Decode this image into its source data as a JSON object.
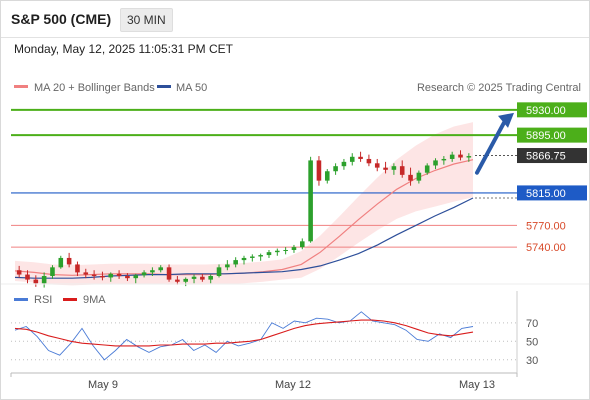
{
  "header": {
    "title": "S&P 500 (CME)",
    "interval": "30 MIN",
    "datetime": "Monday, May 12, 2025 11:05:31 PM CET"
  },
  "legend": {
    "ma20_label": "MA 20 + Bollinger Bands",
    "ma50_label": "MA 50",
    "copyright": "Research © 2025 Trading Central"
  },
  "rsi_legend": {
    "rsi_label": "RSI",
    "ma_label": "9MA"
  },
  "colors": {
    "up_candle": "#2ca02c",
    "down_candle": "#c62828",
    "band_fill": "#fde0e0",
    "ma20": "#f08080",
    "ma50": "#2d4f9a",
    "resistance": "#4caf1a",
    "support": "#1e5bc6",
    "pivot_red": "#f08080",
    "arrow": "#2a5aa8",
    "rsi": "#4a7bd6",
    "rsi_ma": "#d91c1c"
  },
  "chart_data": [
    {
      "type": "candlestick",
      "x_labels": [
        "May 9",
        "May 12",
        "May 13"
      ],
      "ylim": [
        5700,
        5945
      ],
      "series": [
        {
          "name": "MA 20 + Bollinger Bands",
          "values": [
            5707,
            5705,
            5702,
            5701,
            5702,
            5703,
            5703,
            5703,
            5702,
            5702,
            5702,
            5703,
            5704,
            5706,
            5709,
            5716,
            5733,
            5755,
            5778,
            5800,
            5820,
            5835,
            5846,
            5855,
            5861
          ]
        },
        {
          "name": "MA 50",
          "values": [
            5698,
            5697,
            5697,
            5697,
            5698,
            5700,
            5701,
            5702,
            5702,
            5703,
            5703,
            5703,
            5704,
            5705,
            5706,
            5709,
            5714,
            5722,
            5731,
            5743,
            5757,
            5770,
            5783,
            5795,
            5808
          ]
        }
      ],
      "candles": [
        [
          5708,
          5714,
          5698,
          5702
        ],
        [
          5702,
          5708,
          5690,
          5695
        ],
        [
          5695,
          5701,
          5685,
          5690
        ],
        [
          5690,
          5705,
          5684,
          5700
        ],
        [
          5700,
          5715,
          5696,
          5712
        ],
        [
          5712,
          5728,
          5710,
          5725
        ],
        [
          5725,
          5732,
          5712,
          5716
        ],
        [
          5716,
          5720,
          5700,
          5705
        ],
        [
          5705,
          5710,
          5697,
          5702
        ],
        [
          5702,
          5708,
          5695,
          5700
        ],
        [
          5700,
          5706,
          5694,
          5698
        ],
        [
          5698,
          5705,
          5692,
          5703
        ],
        [
          5703,
          5708,
          5696,
          5700
        ],
        [
          5700,
          5704,
          5693,
          5697
        ],
        [
          5697,
          5703,
          5690,
          5701
        ],
        [
          5701,
          5708,
          5698,
          5705
        ],
        [
          5705,
          5712,
          5700,
          5708
        ],
        [
          5708,
          5715,
          5705,
          5712
        ],
        [
          5712,
          5716,
          5692,
          5695
        ],
        [
          5695,
          5700,
          5688,
          5692
        ],
        [
          5692,
          5698,
          5686,
          5696
        ],
        [
          5696,
          5702,
          5690,
          5699
        ],
        [
          5699,
          5703,
          5692,
          5695
        ],
        [
          5695,
          5702,
          5690,
          5700
        ],
        [
          5700,
          5716,
          5698,
          5712
        ],
        [
          5712,
          5722,
          5708,
          5716
        ],
        [
          5716,
          5726,
          5712,
          5722
        ],
        [
          5722,
          5728,
          5716,
          5725
        ],
        [
          5725,
          5730,
          5720,
          5727
        ],
        [
          5727,
          5731,
          5721,
          5729
        ],
        [
          5729,
          5736,
          5725,
          5733
        ],
        [
          5733,
          5738,
          5728,
          5735
        ],
        [
          5735,
          5740,
          5730,
          5736
        ],
        [
          5736,
          5743,
          5732,
          5740
        ],
        [
          5740,
          5752,
          5737,
          5748
        ],
        [
          5748,
          5865,
          5746,
          5860
        ],
        [
          5860,
          5866,
          5825,
          5832
        ],
        [
          5832,
          5848,
          5828,
          5845
        ],
        [
          5845,
          5856,
          5840,
          5852
        ],
        [
          5852,
          5862,
          5847,
          5858
        ],
        [
          5858,
          5870,
          5853,
          5865
        ],
        [
          5865,
          5872,
          5858,
          5862
        ],
        [
          5862,
          5868,
          5852,
          5856
        ],
        [
          5856,
          5862,
          5845,
          5850
        ],
        [
          5850,
          5858,
          5842,
          5847
        ],
        [
          5847,
          5856,
          5840,
          5852
        ],
        [
          5852,
          5860,
          5836,
          5840
        ],
        [
          5840,
          5850,
          5825,
          5832
        ],
        [
          5832,
          5846,
          5828,
          5843
        ],
        [
          5843,
          5856,
          5840,
          5853
        ],
        [
          5853,
          5863,
          5848,
          5860
        ],
        [
          5860,
          5866,
          5854,
          5862
        ],
        [
          5862,
          5872,
          5858,
          5868
        ],
        [
          5868,
          5874,
          5860,
          5864
        ],
        [
          5864,
          5870,
          5858,
          5866
        ]
      ],
      "levels": [
        {
          "label": "5930.00",
          "value": 5930,
          "style": "resistance"
        },
        {
          "label": "5895.00",
          "value": 5895,
          "style": "resistance"
        },
        {
          "label": "5866.75",
          "value": 5866.75,
          "style": "last"
        },
        {
          "label": "5815.00",
          "value": 5815,
          "style": "support"
        },
        {
          "label": "5770.00",
          "value": 5770,
          "style": "pivot"
        },
        {
          "label": "5740.00",
          "value": 5740,
          "style": "pivot"
        }
      ]
    },
    {
      "type": "line",
      "title": "RSI",
      "ylim": [
        20,
        85
      ],
      "y_ticks": [
        "70",
        "50",
        "30"
      ],
      "series": [
        {
          "name": "RSI",
          "values": [
            62,
            66,
            55,
            40,
            35,
            48,
            64,
            45,
            30,
            40,
            52,
            44,
            38,
            44,
            46,
            52,
            40,
            46,
            38,
            50,
            45,
            48,
            52,
            70,
            64,
            72,
            70,
            75,
            74,
            70,
            72,
            82,
            72,
            70,
            68,
            62,
            52,
            50,
            58,
            54,
            64,
            66
          ]
        },
        {
          "name": "9MA",
          "values": [
            64,
            63,
            60,
            56,
            53,
            50,
            48,
            47,
            46,
            45,
            45,
            45,
            45,
            46,
            46,
            47,
            47,
            47,
            48,
            48,
            49,
            50,
            52,
            56,
            60,
            64,
            67,
            69,
            70,
            71,
            72,
            73,
            73,
            72,
            70,
            67,
            63,
            59,
            57,
            56,
            58,
            60
          ]
        }
      ]
    }
  ]
}
